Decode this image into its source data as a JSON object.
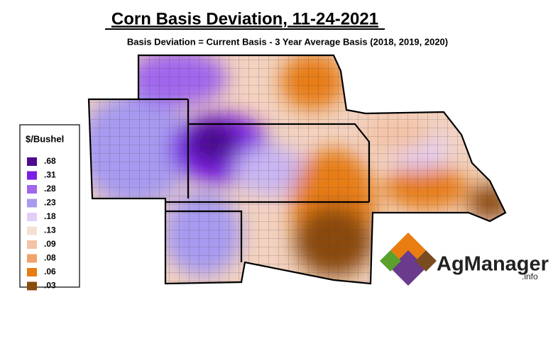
{
  "header": {
    "title": "Corn Basis Deviation, 11-24-2021",
    "subtitle": "Basis Deviation = Current Basis - 3 Year Average Basis (2018, 2019, 2020)"
  },
  "legend": {
    "title": "$/Bushel",
    "items": [
      {
        "label": ".68",
        "color": "#4a0c8e"
      },
      {
        "label": ".31",
        "color": "#7a1fe6"
      },
      {
        "label": ".28",
        "color": "#a066ee"
      },
      {
        "label": ".23",
        "color": "#a79af0"
      },
      {
        "label": ".18",
        "color": "#e2cff5"
      },
      {
        "label": ".13",
        "color": "#f6e0d3"
      },
      {
        "label": ".09",
        "color": "#f3c3a6"
      },
      {
        "label": ".08",
        "color": "#f2a36a"
      },
      {
        "label": ".06",
        "color": "#e87d12"
      },
      {
        "label": ".03",
        "color": "#8a4a0c"
      }
    ]
  },
  "logo": {
    "name": "AgManager",
    "suffix": ".info"
  }
}
